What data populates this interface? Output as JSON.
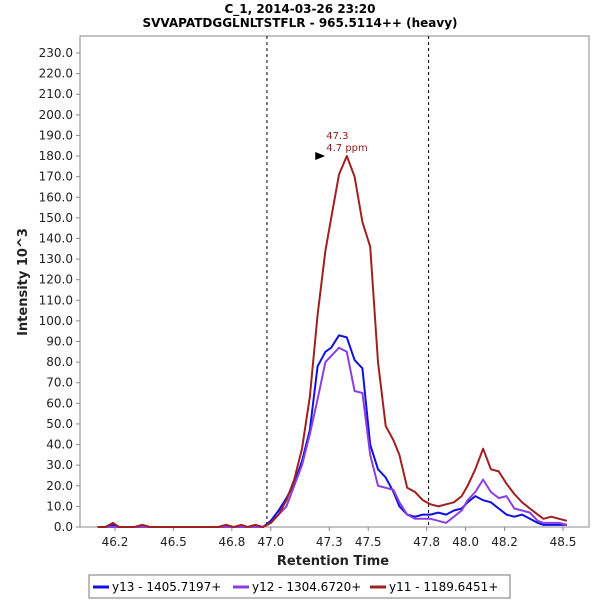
{
  "chart_data": {
    "type": "line",
    "title": "C_1, 2014-03-26 23:20",
    "subtitle": "SVVAPATDGGLNLTSTFLR - 965.5114++ (heavy)",
    "xlabel": "Retention Time",
    "ylabel": "Intensity 10^3",
    "xlim": [
      46.08,
      48.6
    ],
    "ylim": [
      0,
      240
    ],
    "xticks": [
      46.2,
      46.5,
      46.8,
      47.0,
      47.3,
      47.5,
      47.8,
      48.0,
      48.2,
      48.5
    ],
    "xtick_labels": [
      "46.2",
      "46.5",
      "46.8",
      "47.0",
      "47.3",
      "47.5",
      "47.8",
      "48.0",
      "48.2",
      "48.5"
    ],
    "yticks": [
      0,
      10,
      20,
      30,
      40,
      50,
      60,
      70,
      80,
      90,
      100,
      110,
      120,
      130,
      140,
      150,
      160,
      170,
      180,
      190,
      200,
      210,
      220,
      230
    ],
    "ytick_labels": [
      "0.0",
      "10.0",
      "20.0",
      "30.0",
      "40.0",
      "50.0",
      "60.0",
      "70.0",
      "80.0",
      "90.0",
      "100.0",
      "110.0",
      "120.0",
      "130.0",
      "140.0",
      "150.0",
      "160.0",
      "170.0",
      "180.0",
      "190.0",
      "200.0",
      "210.0",
      "220.0",
      "230.0"
    ],
    "vlines": [
      46.98,
      47.81
    ],
    "annotation": {
      "x": 47.3,
      "y": 180,
      "line1": "47.3",
      "line2": "4.7 ppm"
    },
    "legend_position": "bottom-center",
    "x": [
      46.11,
      46.15,
      46.19,
      46.22,
      46.26,
      46.3,
      46.34,
      46.38,
      46.42,
      46.46,
      46.5,
      46.53,
      46.57,
      46.61,
      46.65,
      46.69,
      46.73,
      46.77,
      46.81,
      46.85,
      46.88,
      46.92,
      46.96,
      47.0,
      47.04,
      47.08,
      47.12,
      47.16,
      47.2,
      47.24,
      47.28,
      47.31,
      47.35,
      47.39,
      47.43,
      47.47,
      47.51,
      47.55,
      47.59,
      47.63,
      47.66,
      47.7,
      47.74,
      47.78,
      47.82,
      47.86,
      47.9,
      47.94,
      47.98,
      48.01,
      48.05,
      48.09,
      48.13,
      48.17,
      48.21,
      48.25,
      48.29,
      48.33,
      48.37,
      48.4,
      48.44,
      48.48,
      48.52
    ],
    "series": [
      {
        "name": "y13 - 1405.7197+",
        "color": "#1010e0",
        "values": [
          0,
          0,
          1,
          0,
          0,
          0,
          0,
          0,
          0,
          0,
          0,
          0,
          0,
          0,
          0,
          0,
          0,
          0,
          0,
          0,
          0,
          0,
          0,
          3,
          8,
          14,
          21,
          32,
          47,
          78,
          85,
          87,
          93,
          92,
          81,
          77,
          40,
          28,
          24,
          17,
          10,
          6,
          5,
          6,
          6,
          7,
          6,
          8,
          9,
          12,
          15,
          13,
          12,
          9,
          6,
          5,
          6,
          4,
          2,
          1,
          1,
          1,
          1
        ]
      },
      {
        "name": "y12 - 1304.6720+",
        "color": "#8b3fe0",
        "values": [
          0,
          0,
          0,
          0,
          0,
          0,
          0,
          0,
          0,
          0,
          0,
          0,
          0,
          0,
          0,
          0,
          0,
          0,
          0,
          0,
          0,
          0,
          0,
          2,
          6,
          10,
          20,
          30,
          45,
          62,
          80,
          83,
          87,
          85,
          66,
          65,
          35,
          20,
          19,
          18,
          12,
          6,
          4,
          4,
          4,
          3,
          2,
          5,
          8,
          13,
          17,
          23,
          17,
          14,
          15,
          9,
          8,
          7,
          3,
          2,
          2,
          2,
          1
        ]
      },
      {
        "name": "y11 - 1189.6451+",
        "color": "#a02020",
        "values": [
          0,
          0,
          2,
          0,
          0,
          0,
          1,
          0,
          0,
          0,
          0,
          0,
          0,
          0,
          0,
          0,
          0,
          1,
          0,
          1,
          0,
          1,
          0,
          2,
          6,
          13,
          23,
          38,
          63,
          103,
          134,
          150,
          171,
          180,
          170,
          148,
          136,
          80,
          49,
          42,
          35,
          19,
          17,
          13,
          11,
          10,
          11,
          12,
          15,
          20,
          28,
          38,
          28,
          27,
          21,
          16,
          12,
          9,
          6,
          4,
          5,
          4,
          3
        ]
      }
    ]
  },
  "legend": {
    "items": [
      {
        "label": "y13 - 1405.7197+",
        "color": "#1010e0"
      },
      {
        "label": "y12 - 1304.6720+",
        "color": "#8b3fe0"
      },
      {
        "label": "y11 - 1189.6451+",
        "color": "#a02020"
      }
    ]
  }
}
